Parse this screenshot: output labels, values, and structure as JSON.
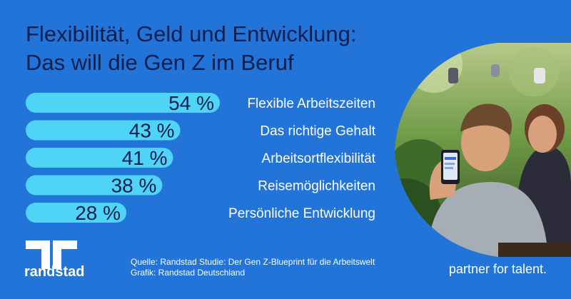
{
  "title": {
    "line1": "Flexibilität, Geld und Entwicklung:",
    "line2": "Das will die Gen Z im Beruf"
  },
  "chart_data": {
    "type": "bar",
    "orientation": "horizontal",
    "categories": [
      "Flexible Arbeitszeiten",
      "Das richtige Gehalt",
      "Arbeitsortflexibilität",
      "Reisemöglichkeiten",
      "Persönliche Entwicklung"
    ],
    "values": [
      54,
      43,
      41,
      38,
      28
    ],
    "value_labels": [
      "54 %",
      "43 %",
      "41 %",
      "38 %",
      "28 %"
    ],
    "unit": "%",
    "xlim": [
      0,
      100
    ],
    "grid": false,
    "bar_color": "#4fd3f7"
  },
  "source": {
    "line1": "Quelle: Randstad Studie: Der Gen Z-Blueprint für die Arbeitswelt",
    "line2": "Grafik: Randstad Deutschland"
  },
  "brand": {
    "name": "randstad",
    "logo_icon": "randstad-logo-icon"
  },
  "tagline": "partner for talent.",
  "photo": {
    "icon": "photo-young-people-with-smartphone"
  },
  "colors": {
    "background": "#2274d8",
    "title": "#0f1f4d",
    "bar": "#4fd3f7",
    "text_light": "#ffffff"
  }
}
